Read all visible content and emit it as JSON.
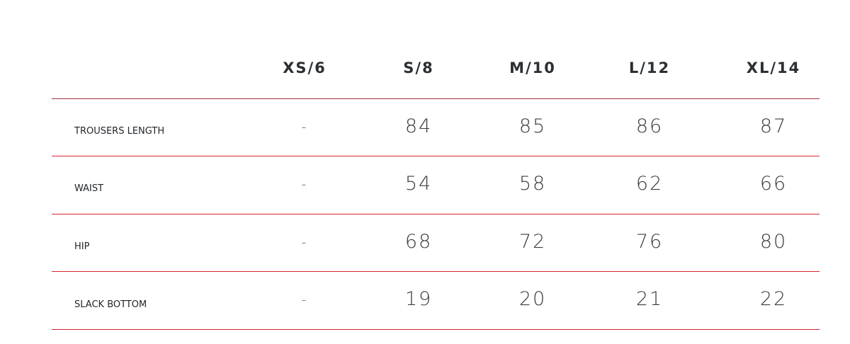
{
  "size_chart": {
    "columns": [
      "XS/6",
      "S/8",
      "M/10",
      "L/12",
      "XL/14"
    ],
    "rows": [
      {
        "label": "TROUSERS LENGTH",
        "values": [
          "-",
          "84",
          "85",
          "86",
          "87"
        ]
      },
      {
        "label": "WAIST",
        "values": [
          "-",
          "54",
          "58",
          "62",
          "66"
        ]
      },
      {
        "label": "HIP",
        "values": [
          "-",
          "68",
          "72",
          "76",
          "80"
        ]
      },
      {
        "label": "SLACK BOTTOM",
        "values": [
          "-",
          "19",
          "20",
          "21",
          "22"
        ]
      }
    ],
    "line_color": "#d7262e"
  }
}
